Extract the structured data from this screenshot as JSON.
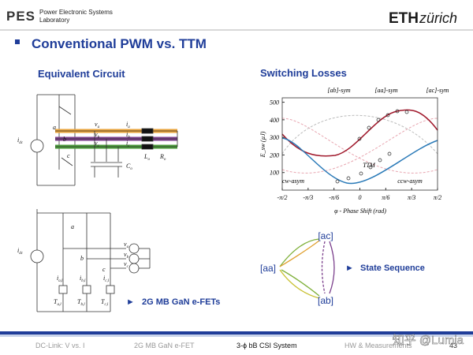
{
  "header": {
    "logo": "PES",
    "lab_line1": "Power Electronic Systems",
    "lab_line2": "Laboratory",
    "eth": "ETH",
    "zurich": "zürich"
  },
  "title": "Conventional PWM vs. TTM",
  "left_heading": "Equivalent Circuit",
  "right_heading": "Switching Losses",
  "circuit1_labels": [
    {
      "main": "i",
      "sub": "dc"
    },
    {
      "main": "a",
      "sub": ""
    },
    {
      "main": "b",
      "sub": ""
    },
    {
      "main": "c",
      "sub": ""
    },
    {
      "main": "v",
      "sub": "a"
    },
    {
      "main": "v",
      "sub": "b"
    },
    {
      "main": "v",
      "sub": "c"
    },
    {
      "main": "i",
      "sub": "a"
    },
    {
      "main": "i",
      "sub": "b"
    },
    {
      "main": "i",
      "sub": "c"
    },
    {
      "main": "L",
      "sub": "o"
    },
    {
      "main": "C",
      "sub": "o"
    },
    {
      "main": "R",
      "sub": "o"
    }
  ],
  "circuit2_labels": [
    {
      "main": "i",
      "sub": "dc"
    },
    {
      "main": "a",
      "sub": ""
    },
    {
      "main": "b",
      "sub": ""
    },
    {
      "main": "c",
      "sub": ""
    },
    {
      "main": "v",
      "sub": "a"
    },
    {
      "main": "v",
      "sub": "b"
    },
    {
      "main": "v",
      "sub": "c"
    },
    {
      "main": "i",
      "sub": "a,l"
    },
    {
      "main": "i",
      "sub": "b,l"
    },
    {
      "main": "i",
      "sub": "c,l"
    },
    {
      "main": "T",
      "sub": "a,l"
    },
    {
      "main": "T",
      "sub": "b,l"
    },
    {
      "main": "T",
      "sub": "c,l"
    }
  ],
  "circuit_caption": "2G MB GaN e-FETs",
  "plot": {
    "ylabel": "E_sw (µJ)",
    "xlabel": "φ - Phase Shift (rad)",
    "ylim": [
      0,
      525
    ],
    "xlim": [
      -1.5708,
      1.5708
    ],
    "yticks": [
      100,
      200,
      300,
      400,
      500
    ],
    "xticks": [
      {
        "value": -1.5708,
        "label": "-π/2"
      },
      {
        "value": -1.0472,
        "label": "-π/3"
      },
      {
        "value": -0.5236,
        "label": "-π/6"
      },
      0,
      {
        "value": 0.5236,
        "label": "π/6"
      },
      {
        "value": 1.0472,
        "label": "π/3"
      },
      {
        "value": 1.5708,
        "label": "π/2"
      }
    ],
    "annotations": [
      "[ab]-sym",
      "[aa]-sym",
      "[ac]-sym",
      "TTM",
      "cw-asym",
      "ccw-asym"
    ]
  },
  "state_diagram": {
    "nodes": [
      "[ac]",
      "[aa]",
      "[ab]"
    ],
    "caption": "State Sequence"
  },
  "footer": {
    "items": [
      "DC-Link: V vs. I",
      "2G MB GaN e-FET",
      "3-ϕ bB CSI System",
      "HW & Measurements"
    ],
    "page": "43"
  },
  "watermark": "知乎 @Lumia"
}
